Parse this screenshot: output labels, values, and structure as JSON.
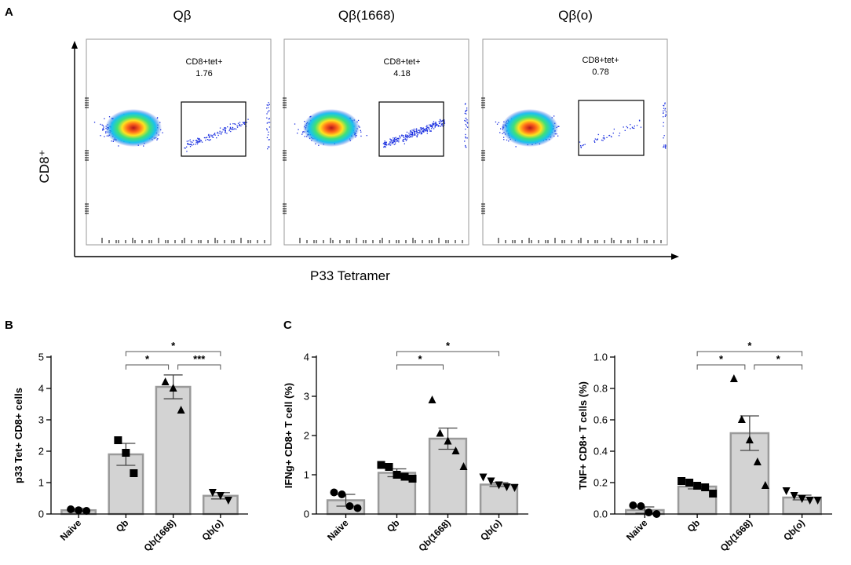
{
  "figure": {
    "panels": {
      "a": "A",
      "b": "B",
      "c": "C"
    },
    "flow": {
      "y_axis_label": "CD8⁺",
      "x_axis_label": "P33 Tetramer",
      "plots": [
        {
          "title": "Qβ",
          "gate_label": "CD8+tet+",
          "gate_value": "1.76"
        },
        {
          "title": "Qβ(1668)",
          "gate_label": "CD8+tet+",
          "gate_value": "4.18"
        },
        {
          "title": "Qβ(o)",
          "gate_label": "CD8+tet+",
          "gate_value": "0.78"
        }
      ]
    }
  },
  "chart_data": [
    {
      "type": "bar",
      "panel": "B",
      "ylabel": "p33 Tet+ CD8+ cells",
      "categories": [
        "Naive",
        "Qb",
        "Qb(1668)",
        "Qb(o)"
      ],
      "values": [
        0.12,
        1.9,
        4.05,
        0.58
      ],
      "sem": [
        0.05,
        0.35,
        0.38,
        0.1
      ],
      "points": [
        [
          0.15,
          0.12,
          0.1
        ],
        [
          2.35,
          1.95,
          1.3
        ],
        [
          4.2,
          4.0,
          3.3
        ],
        [
          0.7,
          0.6,
          0.45
        ]
      ],
      "markers": [
        "circle",
        "square",
        "triangle",
        "triangle-down"
      ],
      "ylim": [
        0,
        5
      ],
      "yticks": [
        "0",
        "1",
        "2",
        "3",
        "4",
        "5"
      ],
      "significance": [
        {
          "from": 1,
          "to": 3,
          "label": "*",
          "level": 0
        },
        {
          "from": 1,
          "to": 2,
          "label": "*",
          "level": 1
        },
        {
          "from": 2,
          "to": 3,
          "label": "***",
          "level": 1
        }
      ]
    },
    {
      "type": "bar",
      "panel": "C",
      "ylabel": "IFNg+ CD8+ T cell (%)",
      "categories": [
        "Naive",
        "Qb",
        "Qb(1668)",
        "Qb(o)"
      ],
      "values": [
        0.35,
        1.05,
        1.92,
        0.75
      ],
      "sem": [
        0.15,
        0.1,
        0.27,
        0.05
      ],
      "points": [
        [
          0.55,
          0.5,
          0.2,
          0.15
        ],
        [
          1.25,
          1.2,
          1.0,
          0.95,
          0.9
        ],
        [
          2.9,
          2.05,
          1.85,
          1.6,
          1.2
        ],
        [
          0.95,
          0.85,
          0.75,
          0.7,
          0.68
        ]
      ],
      "markers": [
        "circle",
        "square",
        "triangle",
        "triangle-down"
      ],
      "ylim": [
        0,
        4
      ],
      "yticks": [
        "0",
        "1",
        "2",
        "3",
        "4"
      ],
      "significance": [
        {
          "from": 1,
          "to": 3,
          "label": "*",
          "level": 0
        },
        {
          "from": 1,
          "to": 2,
          "label": "*",
          "level": 1
        }
      ]
    },
    {
      "type": "bar",
      "panel": "C-right",
      "ylabel": "TNF+ CD8+ T cells (%)",
      "categories": [
        "Naive",
        "Qb",
        "Qb(1668)",
        "Qb(o)"
      ],
      "values": [
        0.025,
        0.175,
        0.515,
        0.105
      ],
      "sem": [
        0.02,
        0.015,
        0.11,
        0.015
      ],
      "points": [
        [
          0.055,
          0.05,
          0.01,
          0.0
        ],
        [
          0.21,
          0.2,
          0.18,
          0.17,
          0.13
        ],
        [
          0.86,
          0.6,
          0.47,
          0.33,
          0.18
        ],
        [
          0.15,
          0.12,
          0.1,
          0.09,
          0.09
        ]
      ],
      "markers": [
        "circle",
        "square",
        "triangle",
        "triangle-down"
      ],
      "ylim": [
        0,
        1.0
      ],
      "yticks": [
        "0.0",
        "0.2",
        "0.4",
        "0.6",
        "0.8",
        "1.0"
      ],
      "significance": [
        {
          "from": 1,
          "to": 3,
          "label": "*",
          "level": 0
        },
        {
          "from": 1,
          "to": 2,
          "label": "*",
          "level": 1
        },
        {
          "from": 2,
          "to": 3,
          "label": "*",
          "level": 1
        }
      ]
    }
  ]
}
